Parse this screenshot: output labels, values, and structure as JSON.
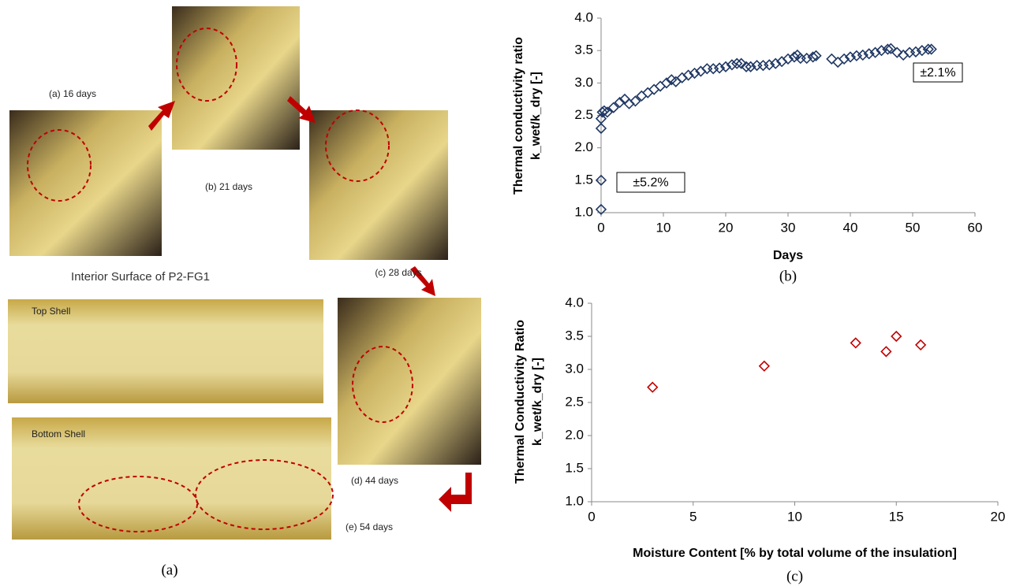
{
  "panel_a": {
    "labels": [
      "(a) 16 days",
      "(b) 21 days",
      "(c) 28 days",
      "(d) 44 days",
      "(e) 54 days",
      "Interior Surface of P2-FG1",
      "Top Shell",
      "Bottom Shell"
    ],
    "caption": "(a)"
  },
  "chart_data": [
    {
      "type": "scatter",
      "caption": "(b)",
      "xlabel": "Days",
      "ylabel": [
        "Thermal conductivity ratio",
        "k_wet/k_dry  [-]"
      ],
      "color": "#203864",
      "annotations": [
        "±2.1%",
        "±5.2%"
      ],
      "x": [
        0,
        0,
        0,
        0,
        0.2,
        0.5,
        1,
        2,
        3,
        3.8,
        4.5,
        5.5,
        6.5,
        7.5,
        8.5,
        9.5,
        10.5,
        11.3,
        12,
        13,
        14,
        15,
        16,
        17,
        18,
        19,
        20,
        21,
        21.8,
        22.5,
        23.3,
        24,
        25,
        26,
        27,
        28,
        29,
        30,
        31,
        31.5,
        32,
        33,
        34,
        34.5,
        37,
        38,
        39,
        40,
        41,
        42,
        43,
        44,
        45,
        46,
        46.5,
        47.5,
        48.5,
        49.5,
        50.5,
        51.5,
        52.5,
        53
      ],
      "values": [
        1.05,
        1.5,
        2.3,
        2.45,
        2.55,
        2.57,
        2.55,
        2.62,
        2.7,
        2.75,
        2.68,
        2.72,
        2.8,
        2.85,
        2.9,
        2.95,
        3.0,
        3.05,
        3.02,
        3.08,
        3.12,
        3.15,
        3.18,
        3.22,
        3.22,
        3.23,
        3.25,
        3.28,
        3.3,
        3.3,
        3.25,
        3.25,
        3.27,
        3.27,
        3.28,
        3.3,
        3.33,
        3.37,
        3.4,
        3.43,
        3.38,
        3.38,
        3.4,
        3.42,
        3.37,
        3.32,
        3.37,
        3.4,
        3.42,
        3.43,
        3.45,
        3.47,
        3.5,
        3.52,
        3.53,
        3.47,
        3.43,
        3.47,
        3.48,
        3.5,
        3.52,
        3.52
      ],
      "xlim": [
        0,
        60
      ],
      "xticks": [
        0,
        10,
        20,
        30,
        40,
        50,
        60
      ],
      "ylim": [
        1,
        4
      ],
      "yticks": [
        {
          "value": 1,
          "label": "1.0"
        },
        {
          "value": 1.5,
          "label": "1.5"
        },
        {
          "value": 2,
          "label": "2.0"
        },
        {
          "value": 2.5,
          "label": "2.5"
        },
        {
          "value": 3,
          "label": "3.0"
        },
        {
          "value": 3.5,
          "label": "3.5"
        },
        {
          "value": 4,
          "label": "4.0"
        }
      ]
    },
    {
      "type": "scatter",
      "caption": "(c)",
      "xlabel": "Moisture Content [% by total volume of the insulation]",
      "ylabel": [
        "Thermal Conductivity Ratio",
        "k_wet/k_dry [-]"
      ],
      "color": "#c00000",
      "x": [
        3,
        8.5,
        13,
        14.5,
        15,
        16.2
      ],
      "values": [
        2.73,
        3.05,
        3.4,
        3.27,
        3.5,
        3.37
      ],
      "xlim": [
        0,
        20
      ],
      "xticks": [
        0,
        5,
        10,
        15,
        20
      ],
      "ylim": [
        1,
        4
      ],
      "yticks": [
        {
          "value": 1,
          "label": "1.0"
        },
        {
          "value": 1.5,
          "label": "1.5"
        },
        {
          "value": 2,
          "label": "2.0"
        },
        {
          "value": 2.5,
          "label": "2.5"
        },
        {
          "value": 3,
          "label": "3.0"
        },
        {
          "value": 3.5,
          "label": "3.5"
        },
        {
          "value": 4,
          "label": "4.0"
        }
      ]
    }
  ]
}
